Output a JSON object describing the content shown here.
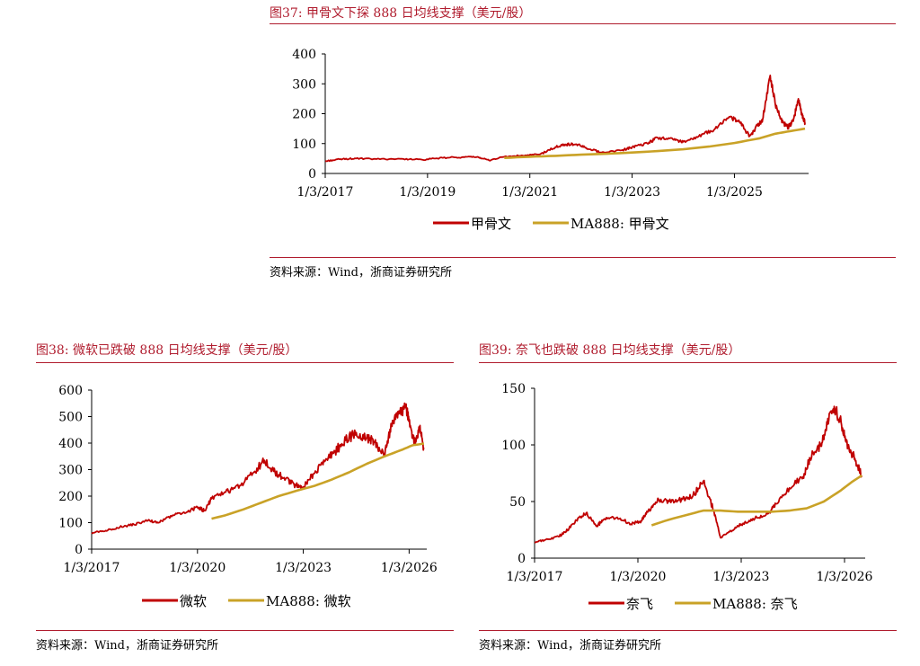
{
  "colors": {
    "title": "#b01c2e",
    "price": "#c00000",
    "ma": "#c9a227",
    "rule": "#b01c2e"
  },
  "charts": [
    {
      "id": "a",
      "title": "图37:   甲骨文下探 888 日均线支撑（美元/股）",
      "source": "资料来源：Wind，浙商证券研究所",
      "chart_data": {
        "type": "line",
        "title": "甲骨文下探 888 日均线支撑（美元/股）",
        "ylim": [
          0,
          400
        ],
        "yticks": [
          "0",
          "100",
          "200",
          "300",
          "400"
        ],
        "xticks": [
          "1/3/2017",
          "1/3/2019",
          "1/3/2021",
          "1/3/2023",
          "1/3/2025"
        ],
        "xtick_years": [
          2017,
          2019,
          2021,
          2023,
          2025
        ],
        "xlim": [
          2017.0,
          2026.45
        ],
        "series": [
          {
            "name": "甲骨文",
            "key": "price",
            "x": [
              2017.0,
              2017.3,
              2017.6,
              2018.0,
              2018.5,
              2018.9,
              2019.3,
              2019.7,
              2020.0,
              2020.2,
              2020.5,
              2020.9,
              2021.2,
              2021.5,
              2021.7,
              2021.9,
              2022.1,
              2022.4,
              2022.8,
              2023.0,
              2023.3,
              2023.5,
              2023.8,
              2024.0,
              2024.3,
              2024.6,
              2024.9,
              2025.1,
              2025.3,
              2025.45,
              2025.55,
              2025.7,
              2025.8,
              2025.95,
              2026.05,
              2026.15,
              2026.25,
              2026.32,
              2026.38
            ],
            "values": [
              41,
              48,
              50,
              48,
              49,
              46,
              52,
              55,
              54,
              44,
              56,
              60,
              64,
              88,
              97,
              98,
              86,
              70,
              78,
              88,
              100,
              120,
              114,
              106,
              124,
              146,
              190,
              172,
              125,
              160,
              180,
              328,
              230,
              170,
              155,
              175,
              250,
              195,
              170
            ]
          },
          {
            "name": "MA888: 甲骨文",
            "key": "ma",
            "x": [
              2020.5,
              2021.0,
              2021.5,
              2022.0,
              2022.5,
              2023.0,
              2023.5,
              2024.0,
              2024.5,
              2025.0,
              2025.5,
              2025.8,
              2026.1,
              2026.38
            ],
            "values": [
              52,
              56,
              59,
              63,
              66,
              70,
              75,
              81,
              90,
              102,
              118,
              133,
              142,
              150
            ]
          }
        ]
      }
    },
    {
      "id": "b",
      "title": "图38:   微软已跌破 888 日均线支撑（美元/股）",
      "source": "资料来源：Wind，浙商证券研究所",
      "chart_data": {
        "type": "line",
        "title": "微软已跌破 888 日均线支撑（美元/股）",
        "ylim": [
          0,
          600
        ],
        "yticks": [
          "0",
          "100",
          "200",
          "300",
          "400",
          "500",
          "600"
        ],
        "xticks": [
          "1/3/2017",
          "1/3/2020",
          "1/3/2023",
          "1/3/2026"
        ],
        "xtick_years": [
          2017,
          2020,
          2023,
          2026
        ],
        "xlim": [
          2017.0,
          2026.5
        ],
        "series": [
          {
            "name": "微软",
            "key": "price",
            "x": [
              2017.0,
              2017.4,
              2017.8,
              2018.2,
              2018.6,
              2018.9,
              2019.3,
              2019.7,
              2020.0,
              2020.2,
              2020.4,
              2020.8,
              2021.2,
              2021.6,
              2021.9,
              2022.2,
              2022.5,
              2022.8,
              2023.0,
              2023.3,
              2023.6,
              2023.9,
              2024.2,
              2024.5,
              2024.8,
              2025.0,
              2025.3,
              2025.5,
              2025.7,
              2025.9,
              2026.0,
              2026.15,
              2026.3,
              2026.42
            ],
            "values": [
              62,
              70,
              83,
              93,
              108,
              100,
              128,
              140,
              158,
              145,
              190,
              215,
              240,
              290,
              335,
              290,
              265,
              240,
              235,
              285,
              330,
              370,
              410,
              440,
              420,
              405,
              360,
              470,
              510,
              535,
              490,
              400,
              455,
              380
            ]
          },
          {
            "name": "MA888: 微软",
            "key": "ma",
            "x": [
              2020.4,
              2020.8,
              2021.3,
              2021.8,
              2022.3,
              2022.8,
              2023.3,
              2023.8,
              2024.3,
              2024.8,
              2025.3,
              2025.8,
              2026.1,
              2026.42
            ],
            "values": [
              115,
              128,
              150,
              175,
              200,
              220,
              238,
              262,
              290,
              322,
              350,
              375,
              392,
              398
            ]
          }
        ]
      }
    },
    {
      "id": "c",
      "title": "图39:   奈飞也跌破 888 日均线支撑（美元/股）",
      "source": "资料来源：Wind，浙商证券研究所",
      "chart_data": {
        "type": "line",
        "title": "奈飞也跌破 888 日均线支撑（美元/股）",
        "ylim": [
          0,
          150
        ],
        "yticks": [
          "0",
          "50",
          "100",
          "150"
        ],
        "xticks": [
          "1/3/2017",
          "1/3/2020",
          "1/3/2023",
          "1/3/2026"
        ],
        "xtick_years": [
          2017,
          2020,
          2023,
          2026
        ],
        "xlim": [
          2017.0,
          2026.6
        ],
        "series": [
          {
            "name": "奈飞",
            "key": "price",
            "x": [
              2017.0,
              2017.3,
              2017.7,
              2018.0,
              2018.3,
              2018.5,
              2018.8,
              2019.0,
              2019.4,
              2019.8,
              2020.1,
              2020.3,
              2020.6,
              2020.9,
              2021.3,
              2021.6,
              2021.9,
              2022.2,
              2022.4,
              2022.7,
              2023.0,
              2023.4,
              2023.8,
              2024.0,
              2024.4,
              2024.8,
              2025.0,
              2025.3,
              2025.5,
              2025.7,
              2025.9,
              2026.1,
              2026.3,
              2026.5
            ],
            "values": [
              14,
              16,
              19,
              26,
              36,
              40,
              28,
              34,
              36,
              30,
              33,
              42,
              52,
              50,
              52,
              55,
              68,
              42,
              18,
              24,
              30,
              35,
              40,
              48,
              62,
              72,
              88,
              100,
              118,
              134,
              120,
              98,
              88,
              73
            ]
          },
          {
            "name": "MA888: 奈飞",
            "key": "ma",
            "x": [
              2020.4,
              2020.9,
              2021.4,
              2021.9,
              2022.4,
              2022.9,
              2023.4,
              2023.9,
              2024.4,
              2024.9,
              2025.4,
              2025.9,
              2026.2,
              2026.5
            ],
            "values": [
              29,
              34,
              38,
              42,
              42,
              41,
              41,
              41,
              42,
              44,
              50,
              60,
              67,
              73
            ]
          }
        ]
      }
    }
  ]
}
